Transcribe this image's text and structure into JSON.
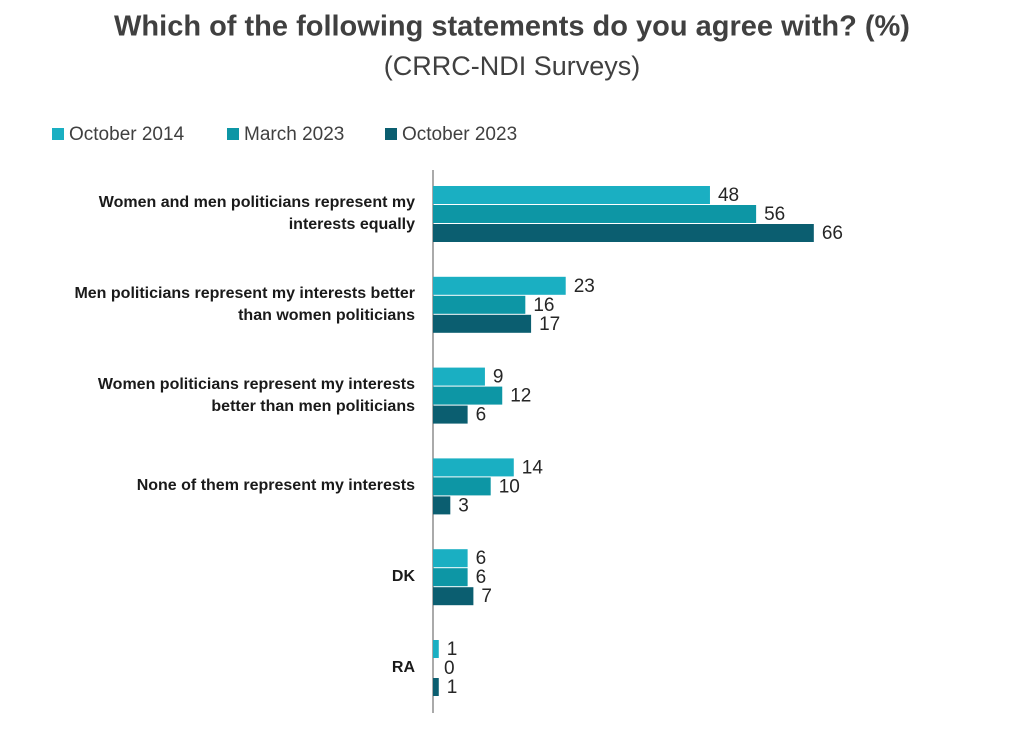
{
  "chart_data": {
    "type": "hbar",
    "title": "Which of the following statements do you agree with? (%)",
    "subtitle": "(CRRC-NDI Surveys)",
    "categories": [
      "Women and men politicians represent my interests equally",
      "Men politicians represent my interests better than women politicians",
      "Women politicians represent my interests better than men politicians",
      "None of them represent my interests",
      "DK",
      "RA"
    ],
    "series": [
      {
        "name": "October 2014",
        "color": "#1aafc2",
        "values": [
          48,
          23,
          9,
          14,
          6,
          1
        ]
      },
      {
        "name": "March 2023",
        "color": "#0d96a5",
        "values": [
          56,
          16,
          12,
          10,
          6,
          0
        ]
      },
      {
        "name": "October 2023",
        "color": "#0b5e70",
        "values": [
          66,
          17,
          6,
          3,
          7,
          1
        ]
      }
    ],
    "legend": "top-left"
  }
}
